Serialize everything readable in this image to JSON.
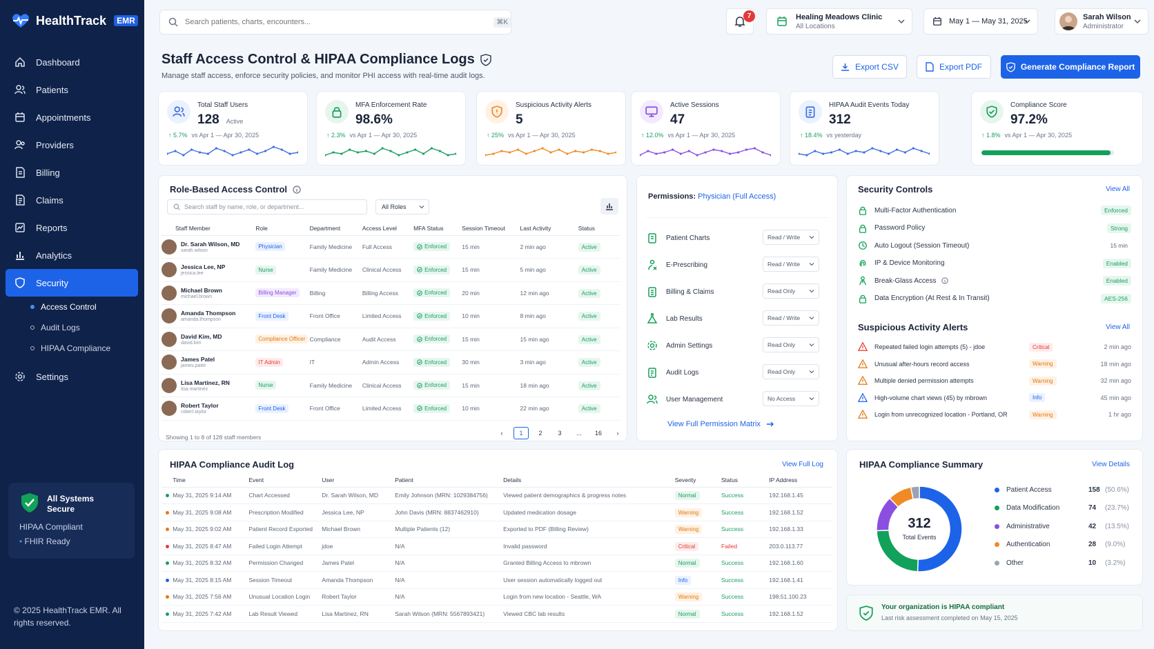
{
  "brand": {
    "name": "HealthTrack",
    "tag": "EMR"
  },
  "nav": [
    {
      "label": "Dashboard",
      "icon": "home-icon"
    },
    {
      "label": "Patients",
      "icon": "users-icon"
    },
    {
      "label": "Appointments",
      "icon": "calendar-icon"
    },
    {
      "label": "Providers",
      "icon": "providers-icon"
    },
    {
      "label": "Billing",
      "icon": "billing-icon"
    },
    {
      "label": "Claims",
      "icon": "claims-icon"
    },
    {
      "label": "Reports",
      "icon": "reports-icon"
    },
    {
      "label": "Analytics",
      "icon": "analytics-icon"
    },
    {
      "label": "Security",
      "icon": "shield-icon"
    },
    {
      "label": "Settings",
      "icon": "gear-icon"
    }
  ],
  "subnav": [
    {
      "label": "Access Control"
    },
    {
      "label": "Audit Logs"
    },
    {
      "label": "HIPAA Compliance"
    }
  ],
  "sys": {
    "title": "All Systems Secure",
    "sub1": "HIPAA Compliant",
    "sub2": "FHIR Ready"
  },
  "copyright": "© 2025 HealthTrack EMR. All rights reserved.",
  "search": {
    "placeholder": "Search patients, charts, encounters...",
    "kbd": "⌘K"
  },
  "notifications": {
    "count": "7"
  },
  "clinic": {
    "name": "Healing Meadows Clinic",
    "sub": "All Locations"
  },
  "date_range": "May 1 — May 31, 2025",
  "user": {
    "name": "Sarah Wilson",
    "role": "Administrator"
  },
  "page": {
    "title": "Staff Access Control & HIPAA Compliance Logs",
    "subtitle": "Manage staff access, enforce security policies, and monitor PHI access with real-time audit logs."
  },
  "actions": {
    "export_csv": "Export CSV",
    "export_pdf": "Export PDF",
    "generate": "Generate Compliance Report"
  },
  "kpis": [
    {
      "label": "Total Staff Users",
      "value": "128",
      "unit": "Active",
      "change": "↑ 5.7%",
      "comp": "vs Apr 1 — Apr 30, 2025",
      "color": "#3b6fe0",
      "bg": "#eaf1ff",
      "icon": "users-icon"
    },
    {
      "label": "MFA Enforcement Rate",
      "value": "98.6%",
      "unit": "",
      "change": "↑ 2.3%",
      "comp": "vs Apr 1 — Apr 30, 2025",
      "color": "#1a9e62",
      "bg": "#e6f6ee",
      "icon": "lock-icon"
    },
    {
      "label": "Suspicious Activity Alerts",
      "value": "5",
      "unit": "",
      "change": "↑ 25%",
      "comp": "vs Apr 1 — Apr 30, 2025",
      "color": "#f08a24",
      "bg": "#fff1e4",
      "icon": "alert-shield-icon"
    },
    {
      "label": "Active Sessions",
      "value": "47",
      "unit": "",
      "change": "↑ 12.0%",
      "comp": "vs Apr 1 — Apr 30, 2025",
      "color": "#8a4fe0",
      "bg": "#f2eafe",
      "icon": "monitor-icon"
    },
    {
      "label": "HIPAA Audit Events Today",
      "value": "312",
      "unit": "",
      "change": "↑ 18.4%",
      "comp": "vs yesterday",
      "color": "#3b6fe0",
      "bg": "#eaf1ff",
      "icon": "clipboard-icon"
    },
    {
      "label": "Compliance Score",
      "value": "97.2%",
      "unit": "",
      "change": "↑ 1.8%",
      "comp": "vs Apr 1 — Apr 30, 2025",
      "color": "#1a9e62",
      "bg": "#e6f6ee",
      "icon": "check-shield-icon",
      "progress": 0.972
    }
  ],
  "rbac": {
    "title": "Role-Based Access Control",
    "search_placeholder": "Search staff by name, role, or department...",
    "roles_filter": "All Roles",
    "columns": [
      "Staff Member",
      "Role",
      "Department",
      "Access Level",
      "MFA Status",
      "Session Timeout",
      "Last Activity",
      "Status"
    ],
    "rows": [
      {
        "name": "Dr. Sarah Wilson, MD",
        "user": "sarah.wilson",
        "role": "Physician",
        "role_color": "#1d63e8",
        "role_bg": "#eaf1ff",
        "dept": "Family Medicine",
        "access": "Full Access",
        "mfa": "Enforced",
        "timeout": "15 min",
        "last": "2 min ago",
        "status": "Active"
      },
      {
        "name": "Jessica Lee, NP",
        "user": "jessica.lee",
        "role": "Nurse",
        "role_color": "#1a9e62",
        "role_bg": "#e6f6ee",
        "dept": "Family Medicine",
        "access": "Clinical Access",
        "mfa": "Enforced",
        "timeout": "15 min",
        "last": "5 min ago",
        "status": "Active"
      },
      {
        "name": "Michael Brown",
        "user": "michael.brown",
        "role": "Billing Manager",
        "role_color": "#8a4fe0",
        "role_bg": "#f2eafe",
        "dept": "Billing",
        "access": "Billing Access",
        "mfa": "Enforced",
        "timeout": "20 min",
        "last": "12 min ago",
        "status": "Active"
      },
      {
        "name": "Amanda Thompson",
        "user": "amanda.thompson",
        "role": "Front Desk",
        "role_color": "#1d63e8",
        "role_bg": "#eaf1ff",
        "dept": "Front Office",
        "access": "Limited Access",
        "mfa": "Enforced",
        "timeout": "10 min",
        "last": "8 min ago",
        "status": "Active"
      },
      {
        "name": "David Kim, MD",
        "user": "david.kim",
        "role": "Compliance Officer",
        "role_color": "#e07a10",
        "role_bg": "#fff1e4",
        "dept": "Compliance",
        "access": "Audit Access",
        "mfa": "Enforced",
        "timeout": "15 min",
        "last": "15 min ago",
        "status": "Active"
      },
      {
        "name": "James Patel",
        "user": "james.patel",
        "role": "IT Admin",
        "role_color": "#e53935",
        "role_bg": "#fdecec",
        "dept": "IT",
        "access": "Admin Access",
        "mfa": "Enforced",
        "timeout": "30 min",
        "last": "3 min ago",
        "status": "Active"
      },
      {
        "name": "Lisa Martinez, RN",
        "user": "lisa.martinez",
        "role": "Nurse",
        "role_color": "#1a9e62",
        "role_bg": "#e6f6ee",
        "dept": "Family Medicine",
        "access": "Clinical Access",
        "mfa": "Enforced",
        "timeout": "15 min",
        "last": "18 min ago",
        "status": "Active"
      },
      {
        "name": "Robert Taylor",
        "user": "robert.taylor",
        "role": "Front Desk",
        "role_color": "#1d63e8",
        "role_bg": "#eaf1ff",
        "dept": "Front Office",
        "access": "Limited Access",
        "mfa": "Enforced",
        "timeout": "10 min",
        "last": "22 min ago",
        "status": "Active"
      }
    ],
    "showing": "Showing 1 to 8 of 128 staff members",
    "pages": [
      "1",
      "2",
      "3",
      "...",
      "16"
    ]
  },
  "permissions": {
    "title": "Permissions:",
    "role": "Physician (Full Access)",
    "rows": [
      {
        "label": "Patient Charts",
        "value": "Read / Write",
        "icon": "chart-icon"
      },
      {
        "label": "E-Prescribing",
        "value": "Read / Write",
        "icon": "prescription-icon"
      },
      {
        "label": "Billing & Claims",
        "value": "Read Only",
        "icon": "billing-icon"
      },
      {
        "label": "Lab Results",
        "value": "Read / Write",
        "icon": "flask-icon"
      },
      {
        "label": "Admin Settings",
        "value": "Read Only",
        "icon": "gear-icon"
      },
      {
        "label": "Audit Logs",
        "value": "Read Only",
        "icon": "log-icon"
      },
      {
        "label": "User Management",
        "value": "No Access",
        "icon": "users-icon"
      }
    ],
    "matrix_link": "View Full Permission Matrix"
  },
  "security": {
    "title": "Security Controls",
    "view_all": "View All",
    "rows": [
      {
        "label": "Multi-Factor Authentication",
        "value": "Enforced",
        "icon": "lock-icon"
      },
      {
        "label": "Password Policy",
        "value": "Strong",
        "icon": "lock-icon"
      },
      {
        "label": "Auto Logout (Session Timeout)",
        "value": "15 min",
        "icon": "clock-icon"
      },
      {
        "label": "IP & Device Monitoring",
        "value": "Enabled",
        "icon": "fingerprint-icon"
      },
      {
        "label": "Break-Glass Access",
        "value": "Enabled",
        "icon": "person-icon"
      },
      {
        "label": "Data Encryption (At Rest & In Transit)",
        "value": "AES-256",
        "icon": "lock-icon"
      }
    ]
  },
  "alerts": {
    "title": "Suspicious Activity Alerts",
    "view_all": "View All",
    "rows": [
      {
        "label": "Repeated failed login attempts (5) - jdoe",
        "sev": "Critical",
        "time": "2 min ago",
        "color": "#e53935",
        "bg": "#fdecec"
      },
      {
        "label": "Unusual after-hours record access",
        "sev": "Warning",
        "time": "18 min ago",
        "color": "#e07a10",
        "bg": "#fff1e4"
      },
      {
        "label": "Multiple denied permission attempts",
        "sev": "Warning",
        "time": "32 min ago",
        "color": "#e07a10",
        "bg": "#fff1e4"
      },
      {
        "label": "High-volume chart views (45) by mbrown",
        "sev": "Info",
        "time": "45 min ago",
        "color": "#1d63e8",
        "bg": "#eaf1ff"
      },
      {
        "label": "Login from unrecognized location - Portland, OR",
        "sev": "Warning",
        "time": "1 hr ago",
        "color": "#e07a10",
        "bg": "#fff1e4"
      }
    ]
  },
  "audit": {
    "title": "HIPAA Compliance Audit Log",
    "view_full": "View Full Log",
    "columns": [
      "Time",
      "Event",
      "User",
      "Patient",
      "Details",
      "Severity",
      "Status",
      "IP Address"
    ],
    "rows": [
      {
        "time": "May 31, 2025 9:14 AM",
        "event": "Chart Accessed",
        "user": "Dr. Sarah Wilson, MD",
        "patient": "Emily Johnson (MRN: 1029384756)",
        "details": "Viewed patient demographics & progress notes",
        "sev": "Normal",
        "status": "Success",
        "ip": "192.168.1.45",
        "color": "#1a9e62"
      },
      {
        "time": "May 31, 2025 9:08 AM",
        "event": "Prescription Modified",
        "user": "Jessica Lee, NP",
        "patient": "John Davis (MRN: 8837462910)",
        "details": "Updated medication dosage",
        "sev": "Warning",
        "status": "Success",
        "ip": "192.168.1.52",
        "color": "#e07a10"
      },
      {
        "time": "May 31, 2025 9:02 AM",
        "event": "Patient Record Exported",
        "user": "Michael Brown",
        "patient": "Multiple Patients (12)",
        "details": "Exported to PDF (Billing Review)",
        "sev": "Warning",
        "status": "Success",
        "ip": "192.168.1.33",
        "color": "#e07a10"
      },
      {
        "time": "May 31, 2025 8:47 AM",
        "event": "Failed Login Attempt",
        "user": "jdoe",
        "patient": "N/A",
        "details": "Invalid password",
        "sev": "Critical",
        "status": "Failed",
        "ip": "203.0.113.77",
        "color": "#e53935"
      },
      {
        "time": "May 31, 2025 8:32 AM",
        "event": "Permission Changed",
        "user": "James Patel",
        "patient": "N/A",
        "details": "Granted Billing Access to mbrown",
        "sev": "Normal",
        "status": "Success",
        "ip": "192.168.1.60",
        "color": "#1a9e62"
      },
      {
        "time": "May 31, 2025 8:15 AM",
        "event": "Session Timeout",
        "user": "Amanda Thompson",
        "patient": "N/A",
        "details": "User session automatically logged out",
        "sev": "Info",
        "status": "Success",
        "ip": "192.168.1.41",
        "color": "#1d63e8"
      },
      {
        "time": "May 31, 2025 7:56 AM",
        "event": "Unusual Location Login",
        "user": "Robert Taylor",
        "patient": "N/A",
        "details": "Login from new location - Seattle, WA",
        "sev": "Warning",
        "status": "Success",
        "ip": "198.51.100.23",
        "color": "#e07a10"
      },
      {
        "time": "May 31, 2025 7:42 AM",
        "event": "Lab Result Viewed",
        "user": "Lisa Martinez, RN",
        "patient": "Sarah Wilson (MRN: 5567893421)",
        "details": "Viewed CBC lab results",
        "sev": "Normal",
        "status": "Success",
        "ip": "192.168.1.52",
        "color": "#1a9e62"
      }
    ]
  },
  "summary": {
    "title": "HIPAA Compliance Summary",
    "view_details": "View Details",
    "total": "312",
    "total_label": "Total Events",
    "items": [
      {
        "label": "Patient Access",
        "value": 158,
        "value_text": "158",
        "pct": "(50.6%)",
        "color": "#1d63e8"
      },
      {
        "label": "Data Modification",
        "value": 74,
        "value_text": "74",
        "pct": "(23.7%)",
        "color": "#12a15a"
      },
      {
        "label": "Administrative",
        "value": 42,
        "value_text": "42",
        "pct": "(13.5%)",
        "color": "#8a4fe0"
      },
      {
        "label": "Authentication",
        "value": 28,
        "value_text": "28",
        "pct": "(9.0%)",
        "color": "#f08a24"
      },
      {
        "label": "Other",
        "value": 10,
        "value_text": "10",
        "pct": "(3.2%)",
        "color": "#9aa3b2"
      }
    ]
  },
  "compliant": {
    "title": "Your organization is HIPAA compliant",
    "sub": "Last risk assessment completed on May 15, 2025"
  }
}
